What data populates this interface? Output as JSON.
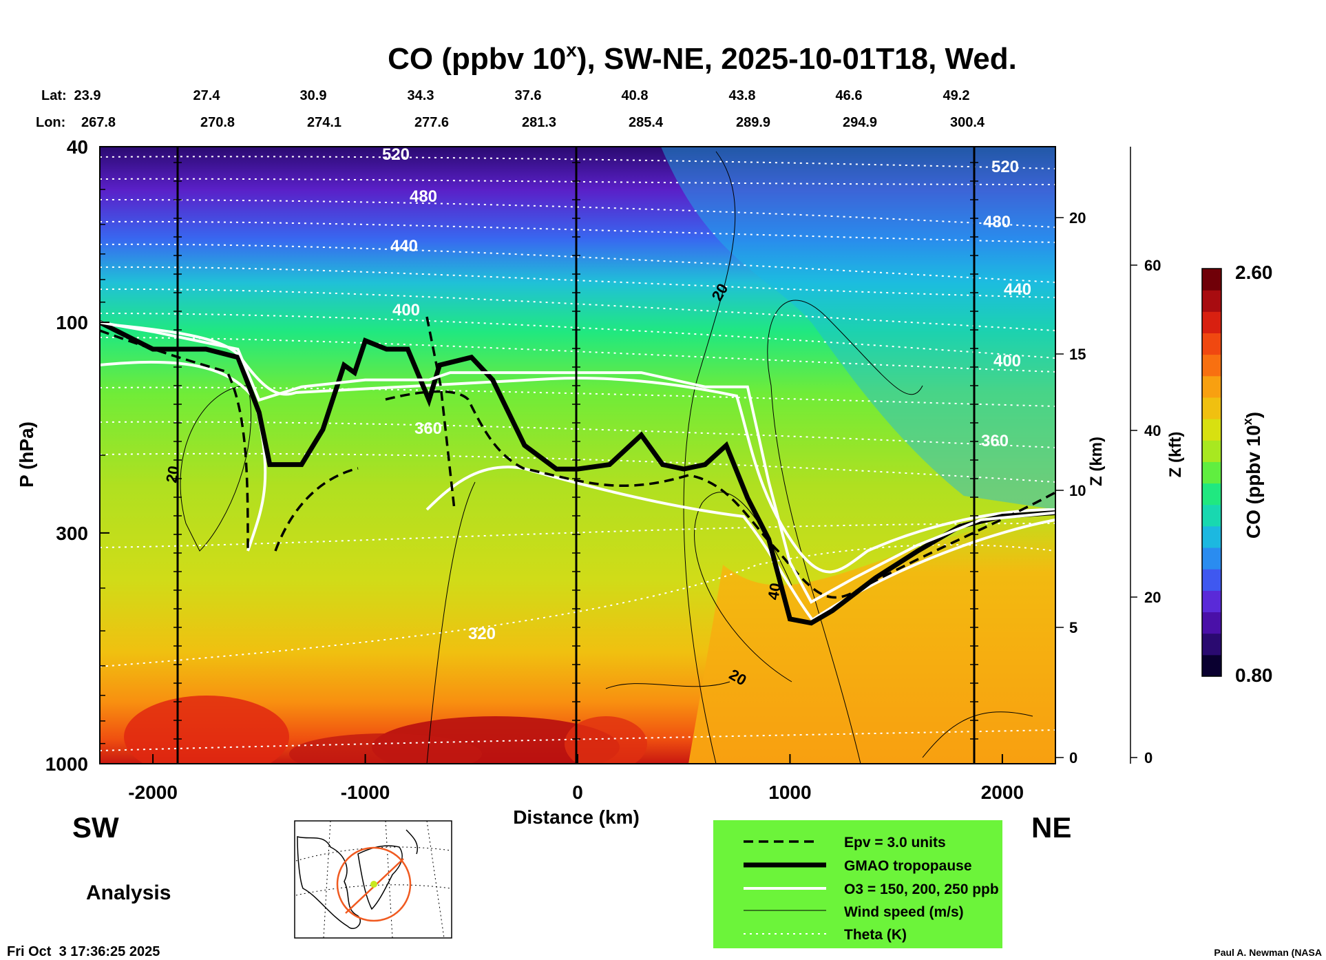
{
  "title": {
    "main": "CO (ppbv 10",
    "sup": "x",
    "rest": "), SW-NE, 2025-10-01T18, Wed."
  },
  "header_labels": {
    "lat": "Lat:",
    "lon": "Lon:"
  },
  "lat_values": [
    "23.9",
    "27.4",
    "30.9",
    "34.3",
    "37.6",
    "40.8",
    "43.8",
    "46.6",
    "49.2"
  ],
  "lon_values": [
    "267.8",
    "270.8",
    "274.1",
    "277.6",
    "281.3",
    "285.4",
    "289.9",
    "294.9",
    "300.4"
  ],
  "axes": {
    "y_left_label": "P (hPa)",
    "y_left_ticks": [
      "40",
      "100",
      "300",
      "1000"
    ],
    "x_label": "Distance (km)",
    "x_ticks": [
      "-2000",
      "-1000",
      "0",
      "1000",
      "2000"
    ],
    "z_km_label": "Z (km)",
    "z_km_ticks": [
      "0",
      "5",
      "10",
      "15",
      "20"
    ],
    "z_kft_label": "Z (kft)",
    "z_kft_ticks": [
      "0",
      "20",
      "40",
      "60"
    ]
  },
  "colorbar": {
    "label_main": "CO (ppbv 10",
    "label_sup": "x",
    "label_end": ")",
    "max": "2.60",
    "min": "0.80",
    "colors": [
      "#0a0030",
      "#2a0a70",
      "#4a10a8",
      "#5a2ad8",
      "#3f58f0",
      "#2a8cf0",
      "#1cb8e0",
      "#18d8b0",
      "#20e880",
      "#60ee40",
      "#a8e820",
      "#d8e010",
      "#f0c010",
      "#f8a010",
      "#f87010",
      "#f04810",
      "#d82010",
      "#a80c10",
      "#700008"
    ]
  },
  "side_labels": {
    "left": "SW",
    "right": "NE",
    "analysis": "Analysis"
  },
  "theta_labels": [
    "520",
    "480",
    "440",
    "400",
    "360",
    "320",
    "520",
    "480",
    "440",
    "400",
    "360"
  ],
  "wind_labels": [
    "20",
    "20",
    "40",
    "20"
  ],
  "legend": {
    "items": [
      {
        "label": "Epv = 3.0 units"
      },
      {
        "label": "GMAO tropopause"
      },
      {
        "label": "O3 = 150, 200, 250 ppb"
      },
      {
        "label": "Wind speed (m/s)"
      },
      {
        "label": "Theta (K)"
      }
    ],
    "background": "#6cf43a"
  },
  "footer": {
    "timestamp": "Fri Oct  3 17:36:25 2025",
    "credit": "Paul A. Newman (NASA"
  },
  "chart_data": {
    "type": "heatmap",
    "title": "CO (ppbv 10^x), SW-NE, 2025-10-01T18, Wed.",
    "xlabel": "Distance (km)",
    "ylabel": "P (hPa)",
    "xlim": [
      -2250,
      2250
    ],
    "ylim": [
      1000,
      40
    ],
    "y_scale": "log",
    "colorbar_range": [
      0.8,
      2.6
    ],
    "tropopause": {
      "x": [
        -2250,
        -2000,
        -1750,
        -1600,
        -1500,
        -1450,
        -1300,
        -1200,
        -1100,
        -1050,
        -1000,
        -900,
        -800,
        -700,
        -650,
        -500,
        -400,
        -250,
        -100,
        0,
        150,
        300,
        400,
        500,
        600,
        700,
        800,
        900,
        1000,
        1100,
        1200,
        1400,
        1600,
        1800,
        2000,
        2250
      ],
      "p": [
        100,
        115,
        115,
        120,
        160,
        210,
        210,
        175,
        125,
        130,
        110,
        115,
        115,
        150,
        125,
        120,
        135,
        190,
        215,
        215,
        210,
        180,
        210,
        215,
        210,
        190,
        250,
        310,
        470,
        480,
        450,
        380,
        330,
        290,
        275,
        270
      ]
    },
    "o3_150": {
      "x": [
        -2250,
        -2000,
        -1600,
        -1500,
        -1300,
        -1000,
        -700,
        -600,
        -500,
        -200,
        0,
        300,
        600,
        800,
        900,
        1000,
        1100,
        1300,
        1600,
        1900,
        2250
      ],
      "p": [
        100,
        105,
        115,
        150,
        140,
        135,
        135,
        130,
        130,
        130,
        130,
        130,
        140,
        140,
        230,
        350,
        430,
        380,
        320,
        280,
        270
      ]
    },
    "theta_levels_K": [
      320,
      360,
      400,
      440,
      480,
      520
    ],
    "wind_levels_ms": [
      20,
      40
    ]
  }
}
